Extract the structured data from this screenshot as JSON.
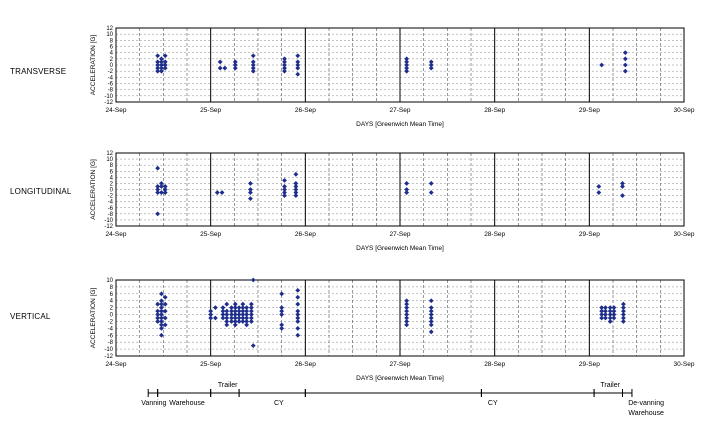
{
  "chart_data": [
    {
      "type": "scatter",
      "title": "TRANSVERSE",
      "xlabel": "DAYS [Greenwich Mean Time]",
      "ylabel": "ACCELERATION [G]",
      "ylim": [
        -12,
        12
      ],
      "yticks": [
        "12",
        "10",
        "8",
        "6",
        "4",
        "2",
        "0",
        "-2",
        "-4",
        "-6",
        "-8",
        "-10",
        "-12"
      ],
      "xticks": [
        "24-Sep",
        "25-Sep",
        "26-Sep",
        "27-Sep",
        "28-Sep",
        "29-Sep",
        "30-Sep"
      ],
      "grid": true,
      "marker_color": "#1f2e8c",
      "points": [
        [
          0.44,
          3
        ],
        [
          0.44,
          1
        ],
        [
          0.44,
          0
        ],
        [
          0.44,
          -1
        ],
        [
          0.44,
          -2
        ],
        [
          0.48,
          2
        ],
        [
          0.48,
          1
        ],
        [
          0.48,
          0
        ],
        [
          0.48,
          -1
        ],
        [
          0.48,
          -2
        ],
        [
          0.52,
          3
        ],
        [
          0.52,
          1
        ],
        [
          0.52,
          0
        ],
        [
          0.52,
          -1
        ],
        [
          1.1,
          1
        ],
        [
          1.1,
          -1
        ],
        [
          1.15,
          -1
        ],
        [
          1.26,
          1
        ],
        [
          1.26,
          0
        ],
        [
          1.26,
          -1
        ],
        [
          1.45,
          3
        ],
        [
          1.45,
          1
        ],
        [
          1.45,
          0
        ],
        [
          1.45,
          -1
        ],
        [
          1.45,
          -2
        ],
        [
          1.78,
          2
        ],
        [
          1.78,
          1
        ],
        [
          1.78,
          0
        ],
        [
          1.78,
          -1
        ],
        [
          1.78,
          -2
        ],
        [
          1.92,
          3
        ],
        [
          1.92,
          1
        ],
        [
          1.92,
          0
        ],
        [
          1.92,
          -1
        ],
        [
          1.92,
          -3
        ],
        [
          3.07,
          2
        ],
        [
          3.07,
          1
        ],
        [
          3.07,
          0
        ],
        [
          3.07,
          -1
        ],
        [
          3.07,
          -2
        ],
        [
          3.33,
          1
        ],
        [
          3.33,
          0
        ],
        [
          3.33,
          -1
        ],
        [
          5.13,
          0
        ],
        [
          5.38,
          4
        ],
        [
          5.38,
          2
        ],
        [
          5.38,
          0
        ],
        [
          5.38,
          -2
        ]
      ]
    },
    {
      "type": "scatter",
      "title": "LONGITUDINAL",
      "xlabel": "DAYS [Greenwich Mean Time]",
      "ylabel": "ACCELERATION [G]",
      "ylim": [
        -12,
        12
      ],
      "yticks": [
        "12",
        "10",
        "8",
        "6",
        "4",
        "2",
        "0",
        "-2",
        "-4",
        "-6",
        "-8",
        "-10",
        "-12"
      ],
      "xticks": [
        "24-Sep",
        "25-Sep",
        "26-Sep",
        "27-Sep",
        "28-Sep",
        "29-Sep",
        "30-Sep"
      ],
      "grid": true,
      "marker_color": "#1f2e8c",
      "points": [
        [
          0.44,
          7
        ],
        [
          0.44,
          1
        ],
        [
          0.44,
          0
        ],
        [
          0.44,
          -1
        ],
        [
          0.44,
          -8
        ],
        [
          0.48,
          2
        ],
        [
          0.48,
          1
        ],
        [
          0.48,
          -1
        ],
        [
          0.52,
          1
        ],
        [
          0.52,
          0
        ],
        [
          0.52,
          -1
        ],
        [
          1.07,
          -1
        ],
        [
          1.12,
          -1
        ],
        [
          1.42,
          2
        ],
        [
          1.42,
          0
        ],
        [
          1.42,
          -1
        ],
        [
          1.42,
          -3
        ],
        [
          1.78,
          3
        ],
        [
          1.78,
          1
        ],
        [
          1.78,
          0
        ],
        [
          1.78,
          -1
        ],
        [
          1.78,
          -2
        ],
        [
          1.9,
          5
        ],
        [
          1.9,
          2
        ],
        [
          1.9,
          1
        ],
        [
          1.9,
          0
        ],
        [
          1.9,
          -1
        ],
        [
          1.9,
          -2
        ],
        [
          3.07,
          2
        ],
        [
          3.07,
          0
        ],
        [
          3.07,
          -1
        ],
        [
          3.33,
          2
        ],
        [
          3.33,
          -1
        ],
        [
          5.1,
          1
        ],
        [
          5.1,
          -1
        ],
        [
          5.35,
          2
        ],
        [
          5.35,
          1
        ],
        [
          5.35,
          -2
        ]
      ]
    },
    {
      "type": "scatter",
      "title": "VERTICAL",
      "xlabel": "DAYS [Greenwich Mean Time]",
      "ylabel": "ACCELERATION [G]",
      "ylim": [
        -12,
        10
      ],
      "yticks": [
        "10",
        "8",
        "6",
        "4",
        "2",
        "0",
        "-2",
        "-4",
        "-6",
        "-8",
        "-10",
        "-12"
      ],
      "xticks": [
        "24-Sep",
        "25-Sep",
        "26-Sep",
        "27-Sep",
        "28-Sep",
        "29-Sep",
        "30-Sep"
      ],
      "grid": true,
      "marker_color": "#1f2e8c",
      "points": [
        [
          0.44,
          3
        ],
        [
          0.44,
          1
        ],
        [
          0.44,
          0
        ],
        [
          0.44,
          -1
        ],
        [
          0.44,
          -2
        ],
        [
          0.48,
          6
        ],
        [
          0.48,
          4
        ],
        [
          0.48,
          3
        ],
        [
          0.48,
          2
        ],
        [
          0.48,
          1
        ],
        [
          0.48,
          0
        ],
        [
          0.48,
          -1
        ],
        [
          0.48,
          -2
        ],
        [
          0.48,
          -3
        ],
        [
          0.48,
          -4
        ],
        [
          0.48,
          -6
        ],
        [
          0.52,
          5
        ],
        [
          0.52,
          3
        ],
        [
          0.52,
          1
        ],
        [
          0.52,
          -1
        ],
        [
          0.52,
          -3
        ],
        [
          1.0,
          1
        ],
        [
          1.0,
          0
        ],
        [
          1.0,
          -1
        ],
        [
          1.05,
          2
        ],
        [
          1.05,
          -1
        ],
        [
          1.13,
          2
        ],
        [
          1.13,
          1
        ],
        [
          1.13,
          0
        ],
        [
          1.13,
          -1
        ],
        [
          1.17,
          3
        ],
        [
          1.17,
          1
        ],
        [
          1.17,
          0
        ],
        [
          1.17,
          -1
        ],
        [
          1.17,
          -2
        ],
        [
          1.17,
          -3
        ],
        [
          1.22,
          2
        ],
        [
          1.22,
          1
        ],
        [
          1.22,
          0
        ],
        [
          1.22,
          -1
        ],
        [
          1.22,
          -2
        ],
        [
          1.26,
          3
        ],
        [
          1.26,
          2
        ],
        [
          1.26,
          1
        ],
        [
          1.26,
          0
        ],
        [
          1.26,
          -1
        ],
        [
          1.26,
          -2
        ],
        [
          1.26,
          -3
        ],
        [
          1.3,
          2
        ],
        [
          1.3,
          1
        ],
        [
          1.3,
          0
        ],
        [
          1.3,
          -1
        ],
        [
          1.3,
          -2
        ],
        [
          1.34,
          3
        ],
        [
          1.34,
          2
        ],
        [
          1.34,
          1
        ],
        [
          1.34,
          0
        ],
        [
          1.34,
          -1
        ],
        [
          1.34,
          -2
        ],
        [
          1.38,
          2
        ],
        [
          1.38,
          1
        ],
        [
          1.38,
          0
        ],
        [
          1.38,
          -1
        ],
        [
          1.38,
          -2
        ],
        [
          1.38,
          -3
        ],
        [
          1.43,
          3
        ],
        [
          1.43,
          2
        ],
        [
          1.43,
          1
        ],
        [
          1.43,
          0
        ],
        [
          1.43,
          -1
        ],
        [
          1.43,
          -2
        ],
        [
          1.45,
          10
        ],
        [
          1.45,
          -9
        ],
        [
          1.75,
          6
        ],
        [
          1.75,
          2
        ],
        [
          1.75,
          1
        ],
        [
          1.75,
          0
        ],
        [
          1.75,
          -3
        ],
        [
          1.75,
          -4
        ],
        [
          1.92,
          7
        ],
        [
          1.92,
          5
        ],
        [
          1.92,
          3
        ],
        [
          1.92,
          1
        ],
        [
          1.92,
          0
        ],
        [
          1.92,
          -1
        ],
        [
          1.92,
          -2
        ],
        [
          1.92,
          -4
        ],
        [
          1.92,
          -6
        ],
        [
          3.07,
          4
        ],
        [
          3.07,
          3
        ],
        [
          3.07,
          2
        ],
        [
          3.07,
          1
        ],
        [
          3.07,
          0
        ],
        [
          3.07,
          -1
        ],
        [
          3.07,
          -2
        ],
        [
          3.07,
          -3
        ],
        [
          3.33,
          4
        ],
        [
          3.33,
          2
        ],
        [
          3.33,
          1
        ],
        [
          3.33,
          0
        ],
        [
          3.33,
          -1
        ],
        [
          3.33,
          -2
        ],
        [
          3.33,
          -3
        ],
        [
          3.33,
          -5
        ],
        [
          5.13,
          2
        ],
        [
          5.13,
          1
        ],
        [
          5.13,
          0
        ],
        [
          5.13,
          -1
        ],
        [
          5.17,
          2
        ],
        [
          5.17,
          1
        ],
        [
          5.17,
          0
        ],
        [
          5.17,
          -1
        ],
        [
          5.22,
          2
        ],
        [
          5.22,
          1
        ],
        [
          5.22,
          0
        ],
        [
          5.22,
          -1
        ],
        [
          5.22,
          -2
        ],
        [
          5.26,
          2
        ],
        [
          5.26,
          1
        ],
        [
          5.26,
          0
        ],
        [
          5.26,
          -1
        ],
        [
          5.36,
          3
        ],
        [
          5.36,
          2
        ],
        [
          5.36,
          1
        ],
        [
          5.36,
          0
        ],
        [
          5.36,
          -1
        ],
        [
          5.36,
          -2
        ]
      ]
    }
  ],
  "timeline": {
    "labels": [
      {
        "text": "Vanning",
        "x": 0.4,
        "pos": "below"
      },
      {
        "text": "Warehouse",
        "x": 0.75,
        "pos": "below"
      },
      {
        "text": "Trailer",
        "x": 1.18,
        "pos": "above"
      },
      {
        "text": "CY",
        "x": 1.72,
        "pos": "below"
      },
      {
        "text": "CY",
        "x": 3.98,
        "pos": "below"
      },
      {
        "text": "Trailer",
        "x": 5.22,
        "pos": "above"
      },
      {
        "text": "De-vanning",
        "x": 5.6,
        "pos": "below"
      },
      {
        "text": "Warehouse",
        "x": 5.6,
        "pos": "below2"
      }
    ],
    "segments": [
      [
        0.34,
        0.44
      ],
      [
        0.44,
        1.0
      ],
      [
        1.0,
        1.3
      ],
      [
        1.3,
        2.0
      ],
      [
        2.0,
        3.86
      ],
      [
        3.86,
        5.05
      ],
      [
        5.05,
        5.35
      ],
      [
        5.35,
        5.45
      ]
    ]
  }
}
